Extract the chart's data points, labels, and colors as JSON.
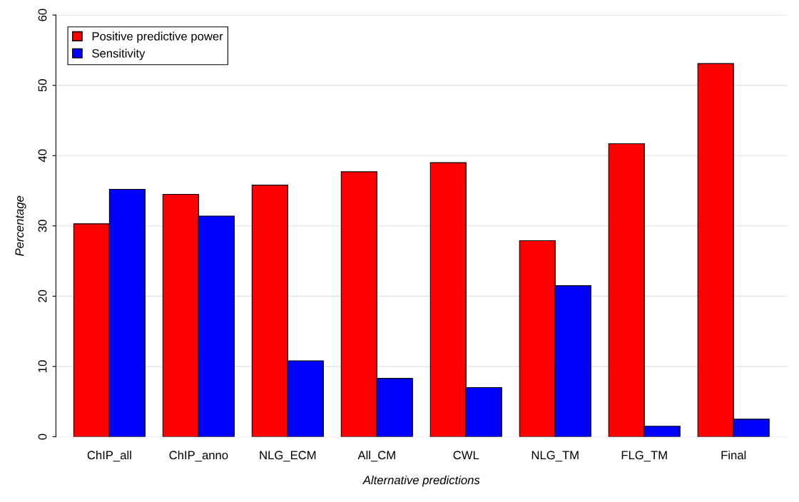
{
  "chart_data": {
    "type": "bar",
    "xlabel": "Alternative predictions",
    "ylabel": "Percentage",
    "categories": [
      "ChIP_all",
      "ChIP_anno",
      "NLG_ECM",
      "All_CM",
      "CWL",
      "NLG_TM",
      "FLG_TM",
      "Final"
    ],
    "series": [
      {
        "name": "Positive predictive power",
        "color": "#ff0000",
        "values": [
          30.3,
          34.5,
          35.8,
          37.7,
          39.0,
          27.9,
          41.7,
          53.1
        ]
      },
      {
        "name": "Sensitivity",
        "color": "#0000ff",
        "values": [
          35.2,
          31.4,
          10.8,
          8.3,
          7.0,
          21.5,
          1.5,
          2.5
        ]
      }
    ],
    "ylim": [
      0,
      60
    ],
    "yticks": [
      0,
      10,
      20,
      30,
      40,
      50,
      60
    ],
    "grid": "y",
    "legend": "top left"
  }
}
